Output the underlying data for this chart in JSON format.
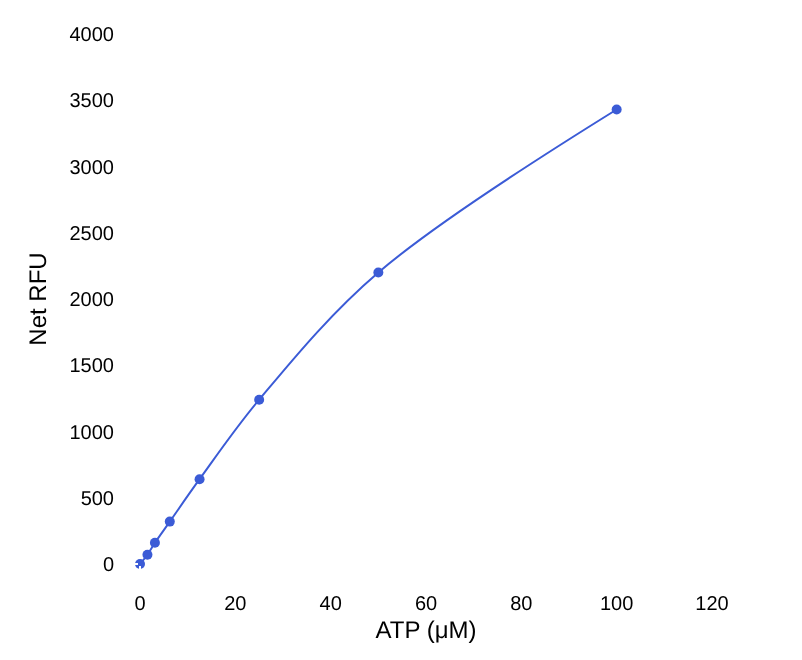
{
  "chart_data": {
    "type": "line",
    "xlabel": "ATP (μM)",
    "ylabel": "Net RFU",
    "x": [
      0,
      1.56,
      3.13,
      6.25,
      12.5,
      25,
      50,
      100
    ],
    "series": [
      {
        "color": "#3b5bd6",
        "values": [
          0,
          70,
          160,
          320,
          640,
          1240,
          2200,
          3430
        ]
      }
    ],
    "xlim": [
      0,
      120
    ],
    "xticks": [
      0,
      20,
      40,
      60,
      80,
      100,
      120
    ],
    "ylim": [
      0,
      4000
    ],
    "yticks": [
      0,
      500,
      1000,
      1500,
      2000,
      2500,
      3000,
      3500,
      4000
    ],
    "legend": false,
    "marker": "circle",
    "line_style": "solid"
  }
}
